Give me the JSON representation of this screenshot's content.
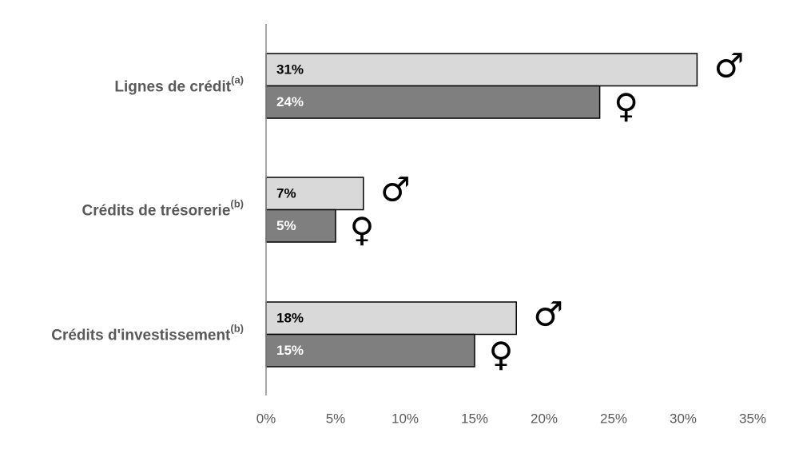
{
  "chart_data": {
    "type": "bar",
    "orientation": "horizontal",
    "categories": [
      "Lignes de crédit",
      "Crédits de trésorerie",
      "Crédits d'investissement"
    ],
    "category_notes": [
      "(a)",
      "(b)",
      "(b)"
    ],
    "series": [
      {
        "name": "♂",
        "color": "#d9d9d9",
        "label_color": "#000000",
        "values": [
          31,
          7,
          18
        ],
        "value_labels": [
          "31%",
          "7%",
          "18%"
        ]
      },
      {
        "name": "♀",
        "color": "#7f7f7f",
        "label_color": "#ffffff",
        "values": [
          24,
          5,
          15
        ],
        "value_labels": [
          "24%",
          "5%",
          "15%"
        ]
      }
    ],
    "xlim": [
      0,
      35
    ],
    "xticks": [
      {
        "value": 0,
        "label": "0%"
      },
      {
        "value": 5,
        "label": "5%"
      },
      {
        "value": 10,
        "label": "10%"
      },
      {
        "value": 15,
        "label": "15%"
      },
      {
        "value": 20,
        "label": "20%"
      },
      {
        "value": 25,
        "label": "25%"
      },
      {
        "value": 30,
        "label": "30%"
      },
      {
        "value": 35,
        "label": "35%"
      }
    ],
    "grid": false
  }
}
